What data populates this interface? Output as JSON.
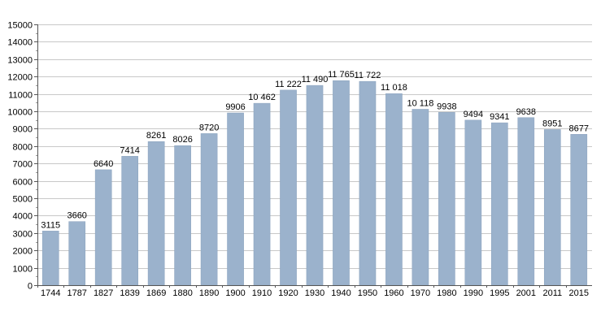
{
  "chart_data": {
    "type": "bar",
    "categories": [
      "1744",
      "1787",
      "1827",
      "1839",
      "1869",
      "1880",
      "1890",
      "1900",
      "1910",
      "1920",
      "1930",
      "1940",
      "1950",
      "1960",
      "1970",
      "1980",
      "1990",
      "1995",
      "2001",
      "2011",
      "2015"
    ],
    "values": [
      3115,
      3660,
      6640,
      7414,
      8261,
      8026,
      8720,
      9906,
      10462,
      11222,
      11490,
      11765,
      11722,
      11018,
      10118,
      9938,
      9494,
      9341,
      9638,
      8951,
      8677
    ],
    "value_labels": [
      "3115",
      "3660",
      "6640",
      "7414",
      "8261",
      "8026",
      "8720",
      "9906",
      "10 462",
      "11 222",
      "11 490",
      "11 765",
      "11 722",
      "11 018",
      "10 118",
      "9938",
      "9494",
      "9341",
      "9638",
      "8951",
      "8677"
    ],
    "y_ticks": [
      "0",
      "1000",
      "2000",
      "3000",
      "4000",
      "5000",
      "6000",
      "7000",
      "8000",
      "9000",
      "10000",
      "11000",
      "12000",
      "13000",
      "14000",
      "15000"
    ],
    "ylim": [
      0,
      15000
    ],
    "grid": true,
    "bar_color": "#9bb2cc",
    "title": "",
    "xlabel": "",
    "ylabel": ""
  }
}
